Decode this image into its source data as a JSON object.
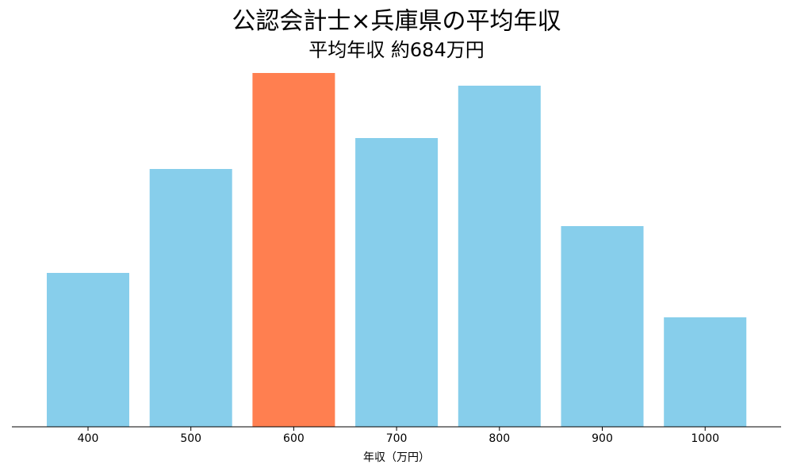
{
  "chart_data": {
    "type": "bar",
    "title": "公認会計士×兵庫県の平均年収",
    "subtitle": "平均年収 約684万円",
    "xlabel": "年収（万円）",
    "categories": [
      "400",
      "500",
      "600",
      "700",
      "800",
      "900",
      "1000"
    ],
    "values": [
      194,
      325,
      446,
      364,
      430,
      253,
      138
    ],
    "colors": [
      "#87ceeb",
      "#87ceeb",
      "#ff7f50",
      "#87ceeb",
      "#87ceeb",
      "#87ceeb",
      "#87ceeb"
    ],
    "ylim": [
      0,
      446
    ]
  }
}
